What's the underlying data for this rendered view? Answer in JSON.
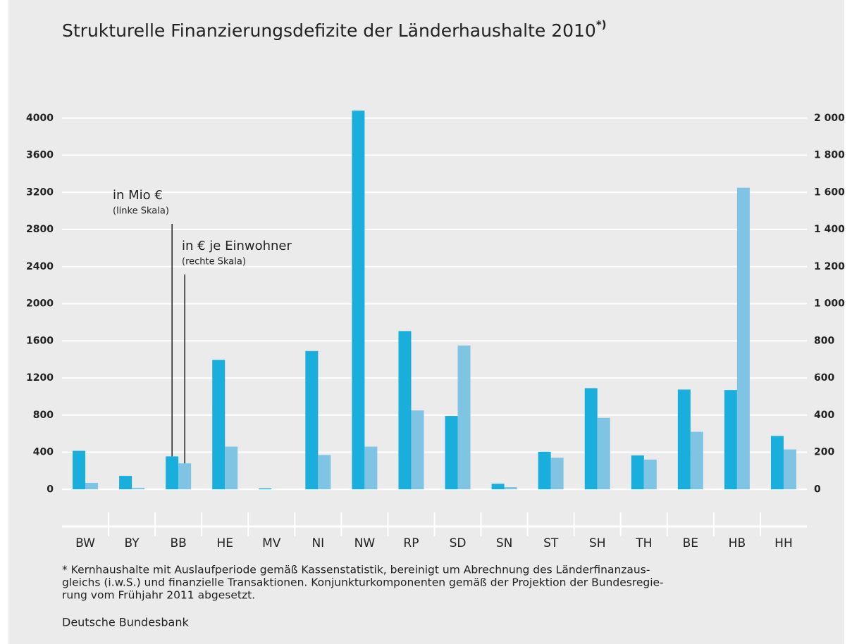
{
  "chart_data": {
    "type": "bar",
    "title": "Strukturelle Finanzierungsdefizite der Länderhaushalte 2010",
    "title_note": "*)",
    "categories": [
      "BW",
      "BY",
      "BB",
      "HE",
      "MV",
      "NI",
      "NW",
      "RP",
      "SD",
      "SN",
      "ST",
      "SH",
      "TH",
      "BE",
      "HB",
      "HH"
    ],
    "series": [
      {
        "name": "in Mio €",
        "note": "(linke Skala)",
        "color": "#1aaedc",
        "values": [
          415,
          145,
          355,
          1395,
          10,
          1490,
          4080,
          1705,
          790,
          60,
          405,
          1090,
          365,
          1075,
          1070,
          575
        ]
      },
      {
        "name": "in € je Einwohner",
        "note": "(rechte Skala)",
        "color": "#7fc4e2",
        "axis": "y2",
        "values": [
          35,
          8,
          140,
          230,
          0,
          185,
          230,
          425,
          775,
          12,
          170,
          385,
          160,
          310,
          1625,
          215
        ]
      }
    ],
    "ylim": [
      -400,
      4400
    ],
    "yticks": [
      0,
      400,
      800,
      1200,
      1600,
      2000,
      2400,
      2800,
      3200,
      3600,
      4000
    ],
    "y2lim": [
      -200,
      2200
    ],
    "y2ticks": [
      0,
      200,
      400,
      600,
      800,
      {
        "value": 1000,
        "label": "1 000"
      },
      {
        "value": 1200,
        "label": "1 200"
      },
      {
        "value": 1400,
        "label": "1 400"
      },
      {
        "value": 1600,
        "label": "1 600"
      },
      {
        "value": 1800,
        "label": "1 800"
      },
      {
        "value": 2000,
        "label": "2 000"
      }
    ],
    "grid": true,
    "footnote": [
      "* Kernhaushalte mit Auslaufperiode gemäß Kassenstatistik, bereinigt um Abrechnung des Länderfinanzaus-",
      "gleichs (i.w.S.) und finanzielle Transaktionen. Konjunkturkomponenten gemäß der Projektion der Bundesregie-",
      "rung vom Frühjahr 2011 abgesetzt."
    ],
    "source": "Deutsche Bundesbank"
  }
}
